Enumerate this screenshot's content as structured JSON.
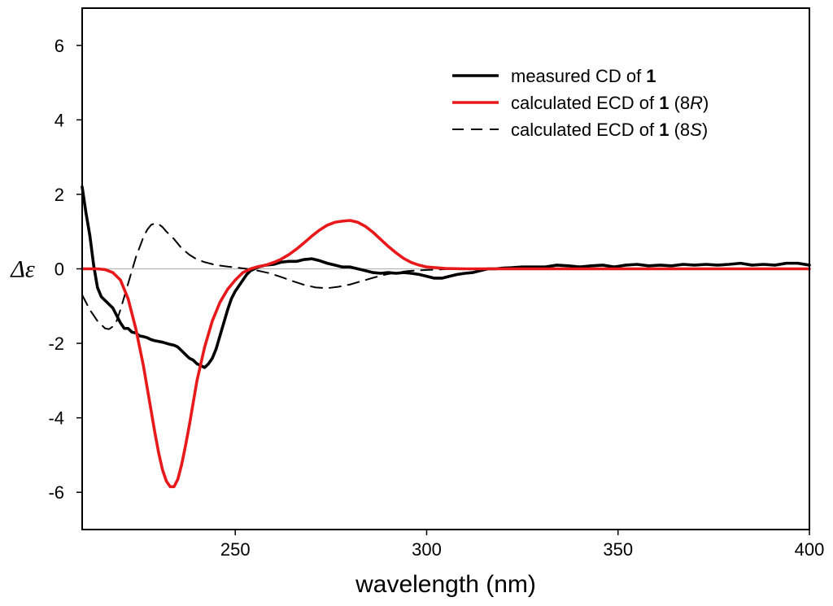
{
  "chart_data": {
    "type": "line",
    "title": "",
    "xlabel": "wavelength (nm)",
    "ylabel": "Δε",
    "xlim": [
      210,
      400
    ],
    "ylim": [
      -7,
      7
    ],
    "x_ticks": [
      250,
      300,
      350,
      400
    ],
    "y_ticks": [
      -6,
      -4,
      -2,
      0,
      2,
      4,
      6
    ],
    "zero_line": true,
    "legend_position": "top-right",
    "legend": [
      {
        "pre": "measured CD of ",
        "bold": "1",
        "suffix_pre": "",
        "suffix_italic": "",
        "suffix_post": ""
      },
      {
        "pre": "calculated ECD of ",
        "bold": "1",
        "suffix_pre": " (8",
        "suffix_italic": "R",
        "suffix_post": ")"
      },
      {
        "pre": "calculated ECD of ",
        "bold": "1",
        "suffix_pre": " (8",
        "suffix_italic": "S",
        "suffix_post": ")"
      }
    ],
    "series": [
      {
        "name": "measured CD of 1",
        "color": "#000000",
        "style": "solid",
        "x": [
          210,
          211,
          212,
          213,
          214,
          215,
          216,
          217,
          218,
          219,
          220,
          221,
          222,
          223,
          224,
          225,
          226,
          227,
          228,
          229,
          230,
          231,
          232,
          233,
          234,
          235,
          236,
          237,
          238,
          239,
          240,
          241,
          242,
          243,
          244,
          245,
          246,
          247,
          248,
          249,
          250,
          251,
          252,
          253,
          254,
          255,
          256,
          258,
          260,
          262,
          264,
          266,
          268,
          270,
          272,
          274,
          276,
          278,
          280,
          282,
          284,
          286,
          288,
          290,
          292,
          294,
          296,
          298,
          300,
          302,
          304,
          306,
          308,
          310,
          312,
          314,
          316,
          318,
          320,
          322,
          325,
          328,
          331,
          334,
          337,
          340,
          343,
          346,
          349,
          352,
          355,
          358,
          361,
          364,
          367,
          370,
          373,
          376,
          379,
          382,
          385,
          388,
          391,
          394,
          397,
          400
        ],
        "values": [
          2.2,
          1.5,
          0.9,
          0.1,
          -0.5,
          -0.75,
          -0.85,
          -0.95,
          -1.05,
          -1.25,
          -1.45,
          -1.6,
          -1.6,
          -1.7,
          -1.72,
          -1.8,
          -1.82,
          -1.85,
          -1.9,
          -1.93,
          -1.95,
          -1.97,
          -2.0,
          -2.03,
          -2.05,
          -2.1,
          -2.2,
          -2.3,
          -2.4,
          -2.45,
          -2.55,
          -2.6,
          -2.65,
          -2.55,
          -2.4,
          -2.15,
          -1.8,
          -1.45,
          -1.1,
          -0.8,
          -0.6,
          -0.45,
          -0.3,
          -0.15,
          -0.05,
          0.0,
          0.05,
          0.1,
          0.12,
          0.18,
          0.2,
          0.2,
          0.25,
          0.27,
          0.22,
          0.15,
          0.1,
          0.05,
          0.05,
          0.0,
          -0.05,
          -0.1,
          -0.12,
          -0.1,
          -0.12,
          -0.1,
          -0.12,
          -0.15,
          -0.2,
          -0.25,
          -0.25,
          -0.2,
          -0.15,
          -0.12,
          -0.1,
          -0.05,
          0.0,
          0.0,
          0.02,
          0.03,
          0.05,
          0.05,
          0.05,
          0.1,
          0.08,
          0.05,
          0.08,
          0.1,
          0.05,
          0.1,
          0.12,
          0.08,
          0.1,
          0.08,
          0.12,
          0.1,
          0.12,
          0.1,
          0.12,
          0.15,
          0.1,
          0.12,
          0.1,
          0.15,
          0.15,
          0.1
        ]
      },
      {
        "name": "calculated ECD of 1 (8R)",
        "color": "#e8191b",
        "style": "solid",
        "x": [
          210,
          212,
          214,
          216,
          218,
          220,
          222,
          224,
          226,
          228,
          229,
          230,
          231,
          232,
          233,
          234,
          235,
          236,
          237,
          238,
          239,
          240,
          242,
          244,
          246,
          248,
          250,
          252,
          254,
          256,
          258,
          260,
          262,
          264,
          266,
          268,
          270,
          272,
          274,
          276,
          278,
          280,
          282,
          284,
          286,
          288,
          290,
          292,
          294,
          296,
          298,
          300,
          305,
          310,
          320,
          330,
          340,
          350,
          360,
          370,
          380,
          390,
          400
        ],
        "values": [
          0.0,
          0.0,
          0.0,
          -0.02,
          -0.1,
          -0.3,
          -0.8,
          -1.6,
          -2.6,
          -3.8,
          -4.4,
          -4.95,
          -5.4,
          -5.7,
          -5.85,
          -5.85,
          -5.65,
          -5.25,
          -4.75,
          -4.2,
          -3.6,
          -3.0,
          -2.1,
          -1.4,
          -0.9,
          -0.55,
          -0.3,
          -0.1,
          0.0,
          0.06,
          0.1,
          0.17,
          0.26,
          0.38,
          0.53,
          0.7,
          0.88,
          1.04,
          1.17,
          1.25,
          1.28,
          1.3,
          1.25,
          1.14,
          0.98,
          0.79,
          0.6,
          0.43,
          0.28,
          0.17,
          0.1,
          0.05,
          0.01,
          0.0,
          0.0,
          0.0,
          0.0,
          0.0,
          0.0,
          0.0,
          0.0,
          0.0,
          0.0
        ]
      },
      {
        "name": "calculated ECD of 1 (8S)",
        "color": "#000000",
        "style": "dashed",
        "x": [
          210,
          212,
          214,
          216,
          217,
          218,
          219,
          220,
          222,
          224,
          226,
          227,
          228,
          229,
          230,
          231,
          232,
          234,
          236,
          238,
          240,
          242,
          245,
          248,
          250,
          253,
          256,
          259,
          262,
          265,
          268,
          271,
          274,
          277,
          280,
          283,
          286,
          289,
          292,
          295,
          300,
          305,
          310,
          320,
          330,
          340,
          350,
          360,
          370,
          380,
          390,
          400
        ],
        "values": [
          -0.7,
          -1.1,
          -1.4,
          -1.6,
          -1.62,
          -1.55,
          -1.4,
          -1.1,
          -0.4,
          0.3,
          0.85,
          1.05,
          1.18,
          1.22,
          1.2,
          1.12,
          1.0,
          0.8,
          0.55,
          0.38,
          0.25,
          0.18,
          0.1,
          0.06,
          0.04,
          0.0,
          -0.05,
          -0.12,
          -0.22,
          -0.33,
          -0.43,
          -0.5,
          -0.52,
          -0.48,
          -0.42,
          -0.33,
          -0.24,
          -0.16,
          -0.1,
          -0.06,
          -0.03,
          -0.01,
          0.0,
          0.0,
          0.0,
          0.0,
          0.0,
          0.0,
          0.0,
          0.0,
          0.0,
          0.0
        ]
      }
    ]
  }
}
